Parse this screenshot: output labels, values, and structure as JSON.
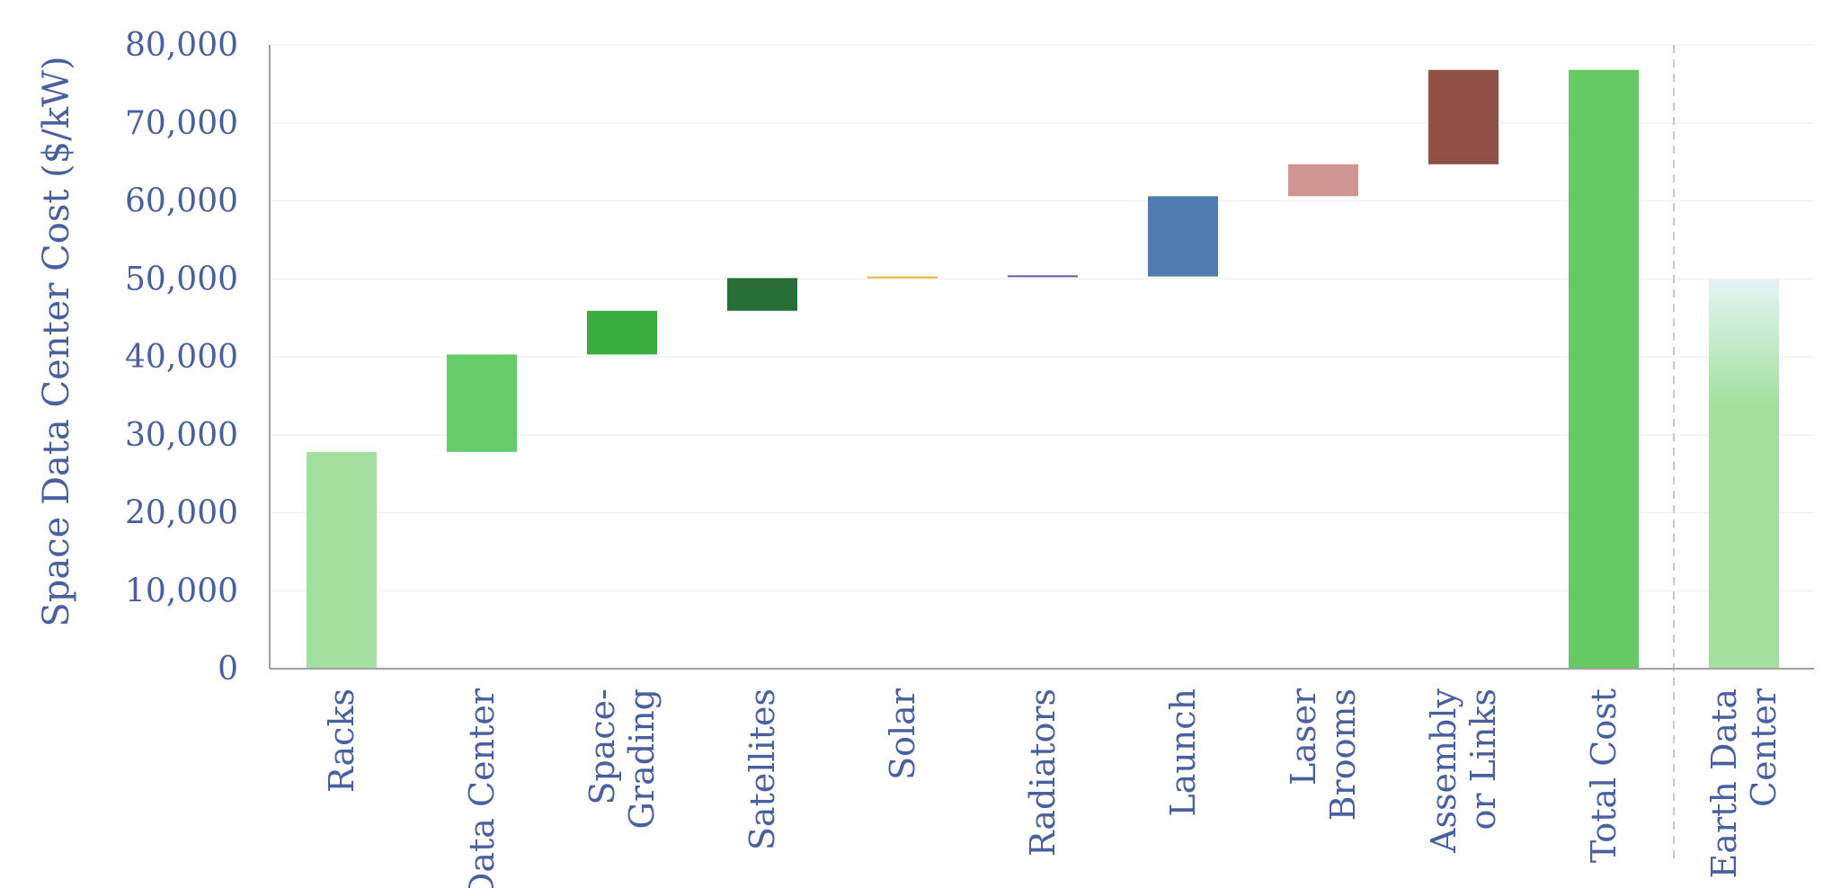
{
  "chart_data": {
    "type": "bar",
    "subtype": "waterfall",
    "ylabel": "Space Data Center Cost ($/kW)",
    "xlabel": "",
    "title": "",
    "ylim": [
      0,
      80000
    ],
    "yticks": [
      0,
      10000,
      20000,
      30000,
      40000,
      50000,
      60000,
      70000,
      80000
    ],
    "ytick_labels": [
      "0",
      "10,000",
      "20,000",
      "30,000",
      "40,000",
      "50,000",
      "60,000",
      "70,000",
      "80,000"
    ],
    "grid": true,
    "legend": "none",
    "categories": [
      [
        "Racks"
      ],
      [
        "Data Center"
      ],
      [
        "Space-",
        "Grading"
      ],
      [
        "Satellites"
      ],
      [
        "Solar"
      ],
      [
        "Radiators"
      ],
      [
        "Launch"
      ],
      [
        "Laser",
        "Brooms"
      ],
      [
        "Assembly",
        "or Links"
      ],
      [
        "Total Cost"
      ],
      [
        "Earth Data",
        "Center"
      ]
    ],
    "bars": [
      {
        "start": 0,
        "end": 27800,
        "kind": "step",
        "color": "#a3e0a0"
      },
      {
        "start": 27800,
        "end": 40300,
        "kind": "step",
        "color": "#66cc6a"
      },
      {
        "start": 40300,
        "end": 45900,
        "kind": "step",
        "color": "#39ad3d"
      },
      {
        "start": 45900,
        "end": 50100,
        "kind": "step",
        "color": "#286f37"
      },
      {
        "start": 50100,
        "end": 50300,
        "kind": "step",
        "color": "#e0b62d"
      },
      {
        "start": 50300,
        "end": 50450,
        "kind": "step",
        "color": "#5a5fa0"
      },
      {
        "start": 50300,
        "end": 60600,
        "kind": "step",
        "color": "#4f7bb0"
      },
      {
        "start": 60600,
        "end": 64700,
        "kind": "step",
        "color": "#cf9592"
      },
      {
        "start": 64700,
        "end": 76800,
        "kind": "step",
        "color": "#8f5048"
      },
      {
        "start": 0,
        "end": 76800,
        "kind": "total",
        "color": "#64cb64"
      },
      {
        "start": 0,
        "end": 50000,
        "kind": "gradient",
        "color": "#a3e0a0"
      }
    ],
    "separator_before_index": 10
  }
}
